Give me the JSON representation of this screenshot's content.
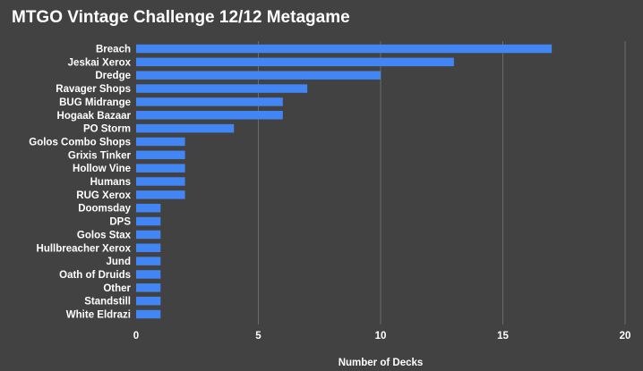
{
  "chart_data": {
    "type": "bar",
    "orientation": "horizontal",
    "title": "MTGO Vintage Challenge 12/12 Metagame",
    "xlabel": "Number of Decks",
    "ylabel": "",
    "xlim": [
      0,
      20
    ],
    "xticks": [
      0,
      5,
      10,
      15,
      20
    ],
    "grid": true,
    "legend": "none",
    "bar_color": "#4285f4",
    "background_color": "#424242",
    "categories": [
      "Breach",
      "Jeskai Xerox",
      "Dredge",
      "Ravager Shops",
      "BUG Midrange",
      "Hogaak Bazaar",
      "PO Storm",
      "Golos Combo Shops",
      "Grixis Tinker",
      "Hollow Vine",
      "Humans",
      "RUG Xerox",
      "Doomsday",
      "DPS",
      "Golos Stax",
      "Hullbreacher Xerox",
      "Jund",
      "Oath of Druids",
      "Other",
      "Standstill",
      "White Eldrazi"
    ],
    "values": [
      17,
      13,
      10,
      7,
      6,
      6,
      4,
      2,
      2,
      2,
      2,
      2,
      1,
      1,
      1,
      1,
      1,
      1,
      1,
      1,
      1
    ]
  }
}
